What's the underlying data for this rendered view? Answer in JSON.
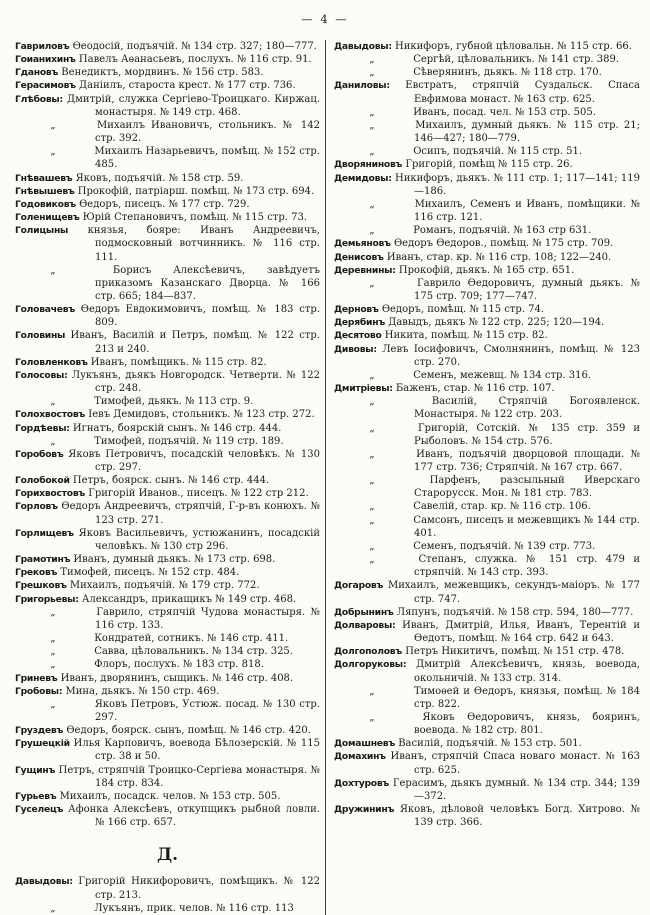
{
  "page": {
    "header_number": "— 4 —"
  },
  "colors": {
    "paper": "#fcfbf8",
    "ink": "#1b1b1b",
    "divider_rule": "#3c3c3c"
  },
  "section_heading_mid_left_column": "Д.",
  "columns": [
    {
      "side": "left",
      "blocks": [
        {
          "type": "entries",
          "items": [
            {
              "name": "Гавриловъ",
              "text": "Ѳеодосій, подъячій. № 134 стр. 327; 180—777."
            },
            {
              "name": "Гоианихинъ",
              "text": "Павелъ Аѳанасьевъ, послухъ. № 116 стр. 91."
            },
            {
              "name": "Гдановъ",
              "text": "Венедиктъ, мордвинъ. № 156 стр. 583."
            },
            {
              "name": "Герасимовъ",
              "text": "Даніилъ, староста крест. № 177 стр. 736."
            },
            {
              "name": "Глѣбовы:",
              "text": "Дмитрій, служка Сергіево-Троицкаго. Киржац. монастыря. № 149 стр. 468."
            },
            {
              "name": "„",
              "text": "Михаилъ Ивановичъ, стольникъ. № 142 стр. 392."
            },
            {
              "name": "„",
              "text": "Михаилъ Назарьевичъ, помѣщ. № 152 стр. 485."
            },
            {
              "name": "Гнѣвашевъ",
              "text": "Яковъ, подъячій. № 158 стр. 59."
            },
            {
              "name": "Гнѣвышевъ",
              "text": "Прокофій, патріарш. помѣщ. № 173 стр. 694."
            },
            {
              "name": "Годовиковъ",
              "text": "Ѳедоръ, писецъ. № 177 стр. 729."
            },
            {
              "name": "Голенищевъ",
              "text": "Юрій Степановичъ, помѣщ. № 115 стр. 73."
            },
            {
              "name": "Голицыны",
              "text": "князья, бояре: Иванъ Андреевичъ, подмосковный вотчинникъ. № 116 стр. 111."
            },
            {
              "name": "„",
              "text": "Борисъ Алексѣевичъ, завѣдуетъ приказомъ Казанскаго Дворца. № 166 стр. 665; 184—837."
            },
            {
              "name": "Головачевъ",
              "text": "Ѳедоръ Евдокимовичъ, помѣщ. № 183 стр. 809."
            },
            {
              "name": "Головины",
              "text": "Иванъ, Василій и Петръ, помѣщ. № 122 стр. 213 и 240."
            },
            {
              "name": "Головленковъ",
              "text": "Иванъ, помѣщикъ. № 115 стр. 82."
            },
            {
              "name": "Голосовы:",
              "text": "Лукъянъ, дьякъ Новгородск. Четверти. № 122 стр. 248."
            },
            {
              "name": "„",
              "text": "Тимофей, дьякъ. № 113 стр. 9."
            },
            {
              "name": "Голохвостовъ",
              "text": "Іевъ Демидовъ, стольникъ. № 123 стр. 272."
            },
            {
              "name": "Гордѣевы:",
              "text": "Игнатъ, боярскій сынъ. № 146 стр. 444."
            },
            {
              "name": "„",
              "text": "Тимофей, подъячій. № 119 стр. 189."
            },
            {
              "name": "Горобовъ",
              "text": "Яковъ Петровичъ, посадскій человѣкъ. № 130 стр. 297."
            },
            {
              "name": "Голобокой",
              "text": "Петръ, боярск. сынъ. № 146 стр. 444."
            },
            {
              "name": "Горихвостовъ",
              "text": "Григорій Иванов., писецъ. № 122 стр 212."
            },
            {
              "name": "Горловъ",
              "text": "Ѳедоръ Андреевичъ, стряпчій, Г-р-въ конюхъ. № 123 стр. 271."
            },
            {
              "name": "Горлищевъ",
              "text": "Яковъ Васильевичъ, устюжанинъ, посадскій человѣкъ. № 130 стр 296."
            },
            {
              "name": "Грамотинъ",
              "text": "Иванъ, думный дьякъ. № 173 стр. 698."
            },
            {
              "name": "Грековъ",
              "text": "Тимофей, писецъ. № 152 стр. 484."
            },
            {
              "name": "Грешковъ",
              "text": "Михаилъ, подъячій. № 179 стр. 772."
            },
            {
              "name": "Григорьевы:",
              "text": "Александръ, прикащикъ № 149 стр. 468."
            },
            {
              "name": "„",
              "text": "Гаврило, стряпчій Чудова монастыря. № 116 стр. 133."
            },
            {
              "name": "„",
              "text": "Кондратей, сотникъ. № 146 стр. 411."
            },
            {
              "name": "„",
              "text": "Савва, цѣловальникъ. № 134 стр. 325."
            },
            {
              "name": "„",
              "text": "Флоръ, послухъ. № 183 стр. 818."
            },
            {
              "name": "Гриневъ",
              "text": "Иванъ, дворянинъ, сыщикъ. № 146 стр. 408."
            },
            {
              "name": "Гробовы:",
              "text": "Мина, дьякъ. № 150 стр. 469."
            },
            {
              "name": "„",
              "text": "Яковъ Петровъ, Устюж. посад. № 130 стр. 297."
            },
            {
              "name": "Груздевъ",
              "text": "Ѳедоръ, боярск. сынъ, помѣщ. № 146 стр. 420."
            },
            {
              "name": "Грушецкій",
              "text": "Илья Карповичъ, воевода Бѣлозерскій. № 115 стр. 38 и 50."
            },
            {
              "name": "Гущинъ",
              "text": "Петръ, стряпчій Троицко-Сергіева монастыря. № 184 стр. 834."
            },
            {
              "name": "Гурьевъ",
              "text": "Михаилъ, посадск. челов. № 153 стр. 505."
            },
            {
              "name": "Гуселецъ",
              "text": "Афонка Алексѣевъ, откупщикъ рыбной ловли. № 166 стр. 657."
            }
          ]
        },
        {
          "type": "section",
          "label": "Д."
        },
        {
          "type": "entries",
          "items": [
            {
              "name": "Давыдовы:",
              "text": "Григорій Никифоровичъ, помѣщикъ. № 122 стр. 213."
            },
            {
              "name": "„",
              "text": "Лукъянъ, прик. челов. № 116 стр. 113"
            }
          ]
        }
      ]
    },
    {
      "side": "right",
      "blocks": [
        {
          "type": "entries",
          "items": [
            {
              "name": "Давыдовы:",
              "text": "Никифоръ, губной цѣловальн. № 115 стр. 66."
            },
            {
              "name": "„",
              "text": "Сергѣй, цѣловальникъ. № 141 стр. 389."
            },
            {
              "name": "„",
              "text": "Сѣверянинъ, дьякъ. № 118 стр. 170."
            },
            {
              "name": "Даниловы:",
              "text": "Евстратъ, стряпчій Суздальск. Спаса Евфимова монаст. № 163 стр. 625."
            },
            {
              "name": "„",
              "text": "Иванъ, посад. чел. № 153 стр. 505."
            },
            {
              "name": "„",
              "text": "Михаилъ, думный дьякъ. № 115 стр. 21; 146—427; 180—779."
            },
            {
              "name": "„",
              "text": "Осипъ, подъячій. № 115 стр. 51."
            },
            {
              "name": "Дворяниновъ",
              "text": "Григорій, помѣщ № 115 стр. 26."
            },
            {
              "name": "Демидовы:",
              "text": "Никифоръ, дьякъ. № 111 стр. 1; 117—141; 119—186."
            },
            {
              "name": "„",
              "text": "Михаилъ, Семенъ и Иванъ, помѣщики. № 116 стр. 121."
            },
            {
              "name": "„",
              "text": "Романъ, подъячій. № 163 стр 631."
            },
            {
              "name": "Демьяновъ",
              "text": "Ѳедоръ Ѳедоров., помѣщ. № 175 стр. 709."
            },
            {
              "name": "Денисовъ",
              "text": "Иванъ, стар. кр. № 116 стр. 108; 122—240."
            },
            {
              "name": "Деревнины:",
              "text": "Прокофій, дьякъ. № 165 стр. 651."
            },
            {
              "name": "„",
              "text": "Гаврило Ѳедоровичъ, думный дьякъ. № 175 стр. 709; 177—747."
            },
            {
              "name": "Дерновъ",
              "text": "Ѳедоръ, помѣщ. № 115 стр. 74."
            },
            {
              "name": "Дерябинъ",
              "text": "Давыдъ, дьякъ № 122 стр. 225; 120—194."
            },
            {
              "name": "Десятово",
              "text": "Никита, помѣщ. № 115 стр. 82."
            },
            {
              "name": "Дивовы:",
              "text": "Левъ Іосифовичъ, Смолнянинъ, помѣщ. № 123 стр. 270."
            },
            {
              "name": "„",
              "text": "Семенъ, межевщ. № 134 стр. 316."
            },
            {
              "name": "Дмитріевы:",
              "text": "Баженъ, стар. № 116 стр. 107."
            },
            {
              "name": "„",
              "text": "Василій, Стряпчій Богоявленск. Монастыря. № 122 стр. 203."
            },
            {
              "name": "„",
              "text": "Григорій, Сотскій. № 135 стр. 359 и Рыболовъ. № 154 стр. 576."
            },
            {
              "name": "„",
              "text": "Иванъ, подъячій дворцовой площади. № 177 стр. 736; Стряпчій. № 167 стр. 667."
            },
            {
              "name": "„",
              "text": "Парфенъ, разсыльный Иверскаго Старорусск. Мон. № 181 стр. 783."
            },
            {
              "name": "„",
              "text": "Савелій, стар. кр. № 116 стр. 106."
            },
            {
              "name": "„",
              "text": "Самсонъ, писецъ и межевщикъ № 144 стр. 401."
            },
            {
              "name": "„",
              "text": "Семенъ, подъячій. № 139 стр. 773."
            },
            {
              "name": "„",
              "text": "Степанъ, служка. № 151 стр. 479 и стряпчій. № 143 стр. 393."
            },
            {
              "name": "Догаровъ",
              "text": "Михаилъ, межевщикъ, секундъ-маіоръ. № 177 стр. 747."
            },
            {
              "name": "Добрынинъ",
              "text": "Ляпунъ, подъячій. № 158 стр. 594, 180—777."
            },
            {
              "name": "Долваровы:",
              "text": "Иванъ, Дмитрій, Илья, Иванъ, Терентій и Ѳедотъ, помѣщ. № 164 стр. 642 и 643."
            },
            {
              "name": "Долгополовъ",
              "text": "Петръ Никитичъ, помѣщ. № 151 стр. 478."
            },
            {
              "name": "Долгоруковы:",
              "text": "Дмитрій Алексѣевичъ, князь, воевода, окольничій. № 133 стр. 314."
            },
            {
              "name": "„",
              "text": "Тимоѳей и Ѳедоръ, князья, помѣщ. № 184 стр. 822."
            },
            {
              "name": "„",
              "text": "Яковъ Ѳедоровичъ, князь, бояринъ, воевода. № 182 стр. 801."
            },
            {
              "name": "Домашневъ",
              "text": "Василій, подъячій. № 153 стр. 501."
            },
            {
              "name": "Домахинъ",
              "text": "Иванъ, стряпчій Спаса новаго монаст. № 163 стр. 625."
            },
            {
              "name": "Дохтуровъ",
              "text": "Герасимъ, дьякъ думный. № 134 стр. 344; 139—372."
            },
            {
              "name": "Дружининъ",
              "text": "Яковъ, дѣловой человѣкъ Богд. Хитрово. № 139 стр. 366."
            }
          ]
        }
      ]
    }
  ]
}
